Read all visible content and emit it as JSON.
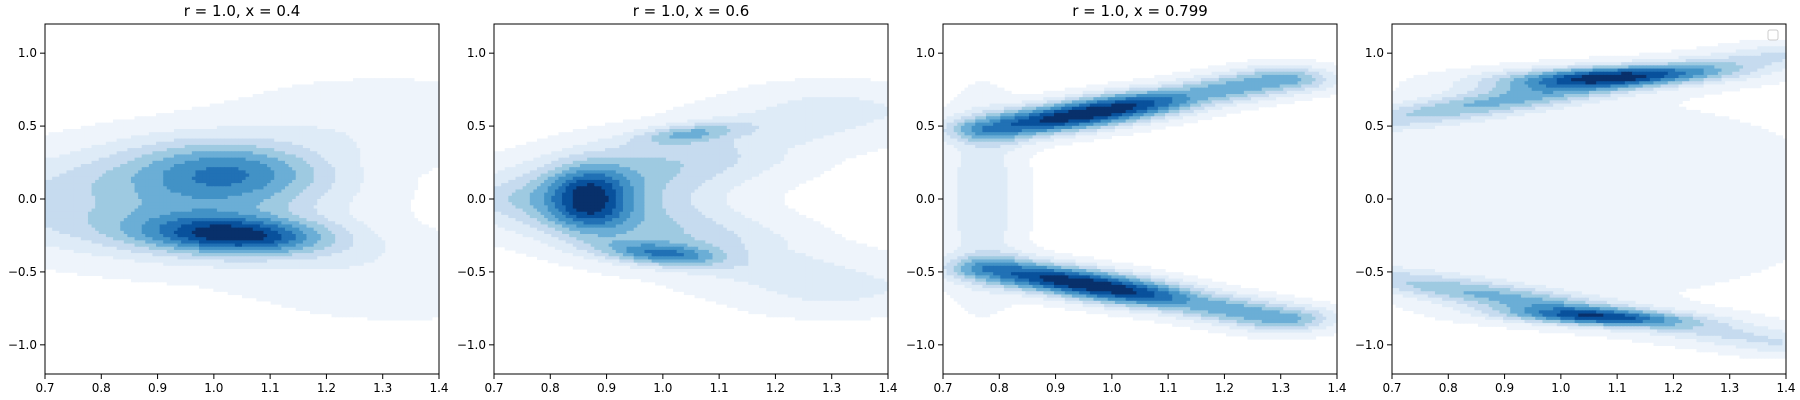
{
  "chart_data": [
    {
      "type": "kde-contour",
      "title": "r = 1.0, x = 0.4",
      "xlim": [
        0.7,
        1.4
      ],
      "ylim": [
        -1.2,
        1.2
      ],
      "xticks": [
        "0.7",
        "0.8",
        "0.9",
        "1.0",
        "1.1",
        "1.2",
        "1.3",
        "1.4"
      ],
      "yticks": [
        "1.0",
        "0.5",
        "0.0",
        "−0.5",
        "−1.0"
      ],
      "legend": false,
      "lobes": [
        {
          "x0": 0.76,
          "y0": -0.05,
          "x1": 1.3,
          "y1": 0.55,
          "w": 0.33,
          "peak": 0.3
        },
        {
          "x0": 0.76,
          "y0": -0.02,
          "x1": 1.33,
          "y1": -0.55,
          "w": 0.33,
          "peak": 0.3
        },
        {
          "cx": 1.03,
          "cy": 0.18,
          "angle": 0.1,
          "rx": 0.12,
          "ry": 0.16,
          "peak": 0.55
        },
        {
          "cx": 1.04,
          "cy": -0.25,
          "angle": -0.35,
          "rx": 0.12,
          "ry": 0.09,
          "peak": 0.9
        }
      ]
    },
    {
      "type": "kde-contour",
      "title": "r = 1.0, x = 0.6",
      "xlim": [
        0.7,
        1.4
      ],
      "ylim": [
        -1.2,
        1.2
      ],
      "xticks": [
        "0.7",
        "0.8",
        "0.9",
        "1.0",
        "1.1",
        "1.2",
        "1.3",
        "1.4"
      ],
      "yticks": [
        "1.0",
        "0.5",
        "0.0",
        "−0.5",
        "−1.0"
      ],
      "legend": false,
      "lobes": [
        {
          "x0": 0.82,
          "y0": 0.02,
          "x1": 1.3,
          "y1": 0.6,
          "w": 0.23,
          "peak": 0.55
        },
        {
          "x0": 0.82,
          "y0": -0.02,
          "x1": 1.3,
          "y1": -0.6,
          "w": 0.23,
          "peak": 0.55
        },
        {
          "cx": 0.87,
          "cy": 0.0,
          "angle": 0,
          "rx": 0.05,
          "ry": 0.15,
          "peak": 0.8
        },
        {
          "cx": 1.05,
          "cy": 0.45,
          "angle": 0.5,
          "rx": 0.07,
          "ry": 0.04,
          "peak": 0.5
        },
        {
          "cx": 1.0,
          "cy": -0.38,
          "angle": -0.5,
          "rx": 0.08,
          "ry": 0.05,
          "peak": 0.7
        }
      ]
    },
    {
      "type": "kde-contour",
      "title": "r = 1.0, x = 0.799",
      "xlim": [
        0.7,
        1.4
      ],
      "ylim": [
        -1.2,
        1.2
      ],
      "xticks": [
        "0.7",
        "0.8",
        "0.9",
        "1.0",
        "1.1",
        "1.2",
        "1.3",
        "1.4"
      ],
      "yticks": [
        "1.0",
        "0.5",
        "0.0",
        "−0.5",
        "−1.0"
      ],
      "legend": false,
      "lobes": [
        {
          "x0": 0.8,
          "y0": 0.48,
          "x1": 1.3,
          "y1": 0.82,
          "w": 0.11,
          "peak": 0.9
        },
        {
          "x0": 0.8,
          "y0": -0.48,
          "x1": 1.3,
          "y1": -0.82,
          "w": 0.11,
          "peak": 0.9
        },
        {
          "cx": 0.77,
          "cy": 0.0,
          "angle": 0,
          "rx": 0.05,
          "ry": 0.45,
          "peak": 0.22
        }
      ]
    },
    {
      "type": "kde-contour",
      "title": "",
      "xlim": [
        0.7,
        1.4
      ],
      "ylim": [
        -1.2,
        1.2
      ],
      "xticks": [
        "0.7",
        "0.8",
        "0.9",
        "1.0",
        "1.1",
        "1.2",
        "1.3",
        "1.4"
      ],
      "yticks": [
        "1.0",
        "0.5",
        "0.0",
        "−0.5",
        "−1.0"
      ],
      "legend": true,
      "legend_position": "top-right",
      "lobes": [
        {
          "x0": 0.7,
          "y0": 0.55,
          "x1": 1.38,
          "y1": 0.98,
          "w": 0.1,
          "peak": 0.6
        },
        {
          "x0": 0.7,
          "y0": -0.55,
          "x1": 1.38,
          "y1": -0.98,
          "w": 0.1,
          "peak": 0.6
        },
        {
          "cx": 1.08,
          "cy": 0.84,
          "angle": 0.15,
          "rx": 0.14,
          "ry": 0.05,
          "peak": 0.9
        },
        {
          "cx": 1.06,
          "cy": -0.81,
          "angle": -0.15,
          "rx": 0.12,
          "ry": 0.04,
          "peak": 0.7
        },
        {
          "cx": 1.05,
          "cy": 0.0,
          "angle": 0,
          "rx": 0.4,
          "ry": 0.6,
          "peak": 0.12
        }
      ]
    }
  ]
}
